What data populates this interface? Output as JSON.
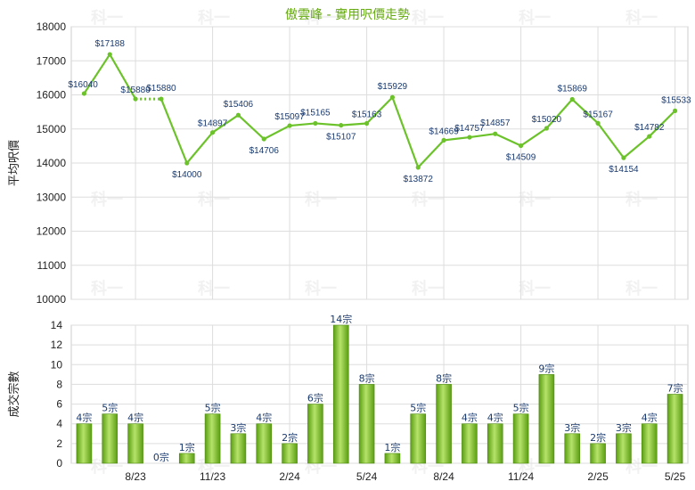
{
  "title": "傲雲峰 - 實用呎價走勢",
  "colors": {
    "accent": "#66aa11",
    "line": "#6cc22a",
    "label": "#1a3a6e",
    "grid": "#dddddd"
  },
  "x_tick_labels": [
    {
      "i": 2,
      "label": "8/23"
    },
    {
      "i": 5,
      "label": "11/23"
    },
    {
      "i": 8,
      "label": "2/24"
    },
    {
      "i": 11,
      "label": "5/24"
    },
    {
      "i": 14,
      "label": "8/24"
    },
    {
      "i": 17,
      "label": "11/24"
    },
    {
      "i": 20,
      "label": "2/25"
    },
    {
      "i": 23,
      "label": "5/25"
    }
  ],
  "watermark": "科一",
  "chart_data": [
    {
      "type": "line",
      "ylabel": "平均呎價",
      "ylim": [
        10000,
        18000
      ],
      "yticks": [
        10000,
        11000,
        12000,
        13000,
        14000,
        15000,
        16000,
        17000,
        18000
      ],
      "series": [
        {
          "values": [
            16040,
            17188,
            15880,
            15880,
            14000,
            14897,
            15406,
            14706,
            15097,
            15165,
            15107,
            15163,
            15929,
            13872,
            14669,
            14757,
            14857,
            14509,
            15020,
            15869,
            15167,
            14154,
            14782,
            15533
          ],
          "labels": [
            "$16040",
            "$17188",
            "$15880",
            "$15880",
            "$14000",
            "$14897",
            "$15406",
            "$14706",
            "$15097",
            "$15165",
            "$15107",
            "$15163",
            "$15929",
            "$13872",
            "$14669",
            "$14757",
            "$14857",
            "$14509",
            "$15020",
            "$15869",
            "$15167",
            "$14154",
            "$14782",
            "$15533"
          ],
          "dotted_segments": [
            2
          ]
        }
      ]
    },
    {
      "type": "bar",
      "ylabel": "成交宗數",
      "ylim": [
        0,
        14
      ],
      "yticks": [
        0,
        2,
        4,
        6,
        8,
        10,
        12,
        14
      ],
      "values": [
        4,
        5,
        4,
        0,
        1,
        5,
        3,
        4,
        2,
        6,
        14,
        8,
        1,
        5,
        8,
        4,
        4,
        5,
        9,
        3,
        2,
        3,
        4,
        7
      ],
      "labels": [
        "4宗",
        "5宗",
        "4宗",
        "0宗",
        "1宗",
        "5宗",
        "3宗",
        "4宗",
        "2宗",
        "6宗",
        "14宗",
        "8宗",
        "1宗",
        "5宗",
        "8宗",
        "4宗",
        "4宗",
        "5宗",
        "9宗",
        "3宗",
        "2宗",
        "3宗",
        "4宗",
        "7宗"
      ]
    }
  ]
}
